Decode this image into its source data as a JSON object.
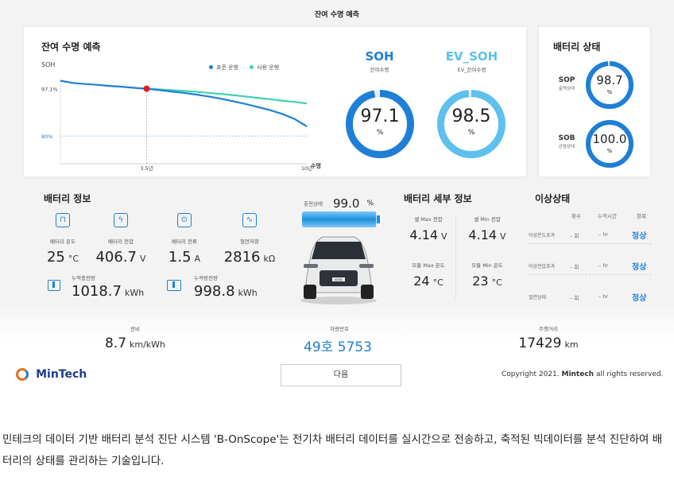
{
  "page_title": "잔여 수명 예측",
  "lifespan_card": {
    "title": "잔여 수명 예측",
    "y_label": "SOH",
    "legend": [
      "표준 운행",
      "사용 운행"
    ],
    "x_axis_title": "수명"
  },
  "chart_data": {
    "type": "line",
    "title": "잔여 수명 예측",
    "ylabel": "SOH",
    "xlabel": "수명",
    "x_ticks": [
      "3.5년",
      "10년"
    ],
    "y_ticks": [
      "97.1%",
      "80%"
    ],
    "x": [
      0,
      0.5,
      1,
      1.5,
      2,
      2.5,
      3,
      3.5,
      4,
      4.5,
      5,
      5.5,
      6,
      6.5,
      7,
      7.5,
      8,
      8.5,
      9,
      9.5,
      10
    ],
    "xlim": [
      0,
      10
    ],
    "ylim": [
      70,
      101
    ],
    "series": [
      {
        "name": "표준 운행",
        "color": "#1e7fd6",
        "values": [
          100,
          99.2,
          98.8,
          98.5,
          98.1,
          97.8,
          97.4,
          97.1,
          96.6,
          96.1,
          95.6,
          95.0,
          94.3,
          93.5,
          92.6,
          91.6,
          90.5,
          89.4,
          88.0,
          86.2,
          83.5
        ]
      },
      {
        "name": "사용 운행",
        "color": "#3ed1b3",
        "values": [
          null,
          null,
          null,
          null,
          null,
          null,
          null,
          97.1,
          96.9,
          96.6,
          96.3,
          96.0,
          95.6,
          95.2,
          94.8,
          94.3,
          93.8,
          93.3,
          92.8,
          92.3,
          91.8
        ]
      }
    ],
    "marker": {
      "x": 3.5,
      "y": 97.1,
      "color": "#e02020"
    },
    "reference_line": {
      "y": 80
    }
  },
  "soh": {
    "title": "SOH",
    "subtitle": "잔여수명",
    "value": "97.1",
    "percent": 97.1,
    "unit": "%",
    "color": "#1e7fd6"
  },
  "ev_soh": {
    "title": "EV_SOH",
    "subtitle": "EV_잔여수명",
    "value": "98.5",
    "percent": 98.5,
    "unit": "%",
    "color": "#5ec0ee"
  },
  "battery_state": {
    "title": "배터리 상태",
    "items": [
      {
        "key": "SOP",
        "desc": "출력상태",
        "value": "98.7",
        "percent": 98.7,
        "unit": "%"
      },
      {
        "key": "SOB",
        "desc": "균형상태",
        "value": "100.0",
        "percent": 100.0,
        "unit": "%"
      }
    ]
  },
  "battery_info": {
    "title": "배터리 정보",
    "metrics": [
      {
        "label": "배터리 온도",
        "value": "25",
        "unit": "°C",
        "icon": "thermometer-icon"
      },
      {
        "label": "배터리 전압",
        "value": "406.7",
        "unit": "V",
        "icon": "bolt-icon"
      },
      {
        "label": "배터리 전류",
        "value": "1.5",
        "unit": "A",
        "icon": "ammeter-icon"
      },
      {
        "label": "절연저항",
        "value": "2816",
        "unit": "kΩ",
        "icon": "resistor-icon"
      }
    ],
    "energy": [
      {
        "label": "누적충전량",
        "value": "1018.7",
        "unit": "kWh",
        "icon": "charge-icon"
      },
      {
        "label": "누적방전량",
        "value": "998.8",
        "unit": "kWh",
        "icon": "discharge-icon"
      }
    ]
  },
  "charge": {
    "label": "충전상태",
    "value": "99.0",
    "percent": 99.0,
    "unit": "%"
  },
  "car_badge": "KONA",
  "detail": {
    "title": "배터리 세부 정보",
    "cells": [
      {
        "label": "셀 Max 전압",
        "value": "4.14",
        "unit": "V"
      },
      {
        "label": "셀 Min 전압",
        "value": "4.14",
        "unit": "V"
      },
      {
        "label": "모듈 Max 온도",
        "value": "24",
        "unit": "°C"
      },
      {
        "label": "모듈 Min 온도",
        "value": "23",
        "unit": "°C"
      }
    ]
  },
  "abnormal": {
    "title": "이상상태",
    "headers": [
      "횟수",
      "누적시간",
      "항목"
    ],
    "rows": [
      {
        "name": "이상온도초과",
        "count": "– 회",
        "time": "– hr",
        "status": "정상"
      },
      {
        "name": "이상전압초과",
        "count": "– 회",
        "time": "– hr",
        "status": "정상"
      },
      {
        "name": "절연상태",
        "count": "– 회",
        "time": "– hr",
        "status": "정상"
      }
    ]
  },
  "footer_stats": [
    {
      "label": "전비",
      "value": "8.7",
      "unit": "km/kWh"
    },
    {
      "label": "차량번호",
      "value": "49호 5753",
      "unit": ""
    },
    {
      "label": "주행거리",
      "value": "17429",
      "unit": "km"
    }
  ],
  "logo_text": "MinTech",
  "next_button": "다음",
  "copyright_prefix": "Copyright 2021.",
  "copyright_brand": "Mintech",
  "copyright_suffix": "all rights reserved.",
  "caption": "민테크의 데이터 기반 배터리 분석 진단 시스템 'B-OnScope'는 전기차 배터리 데이터를 실시간으로 전송하고, 축적된 빅데이터를 분석 진단하여 배터리의 상태를 관리하는 기술입니다."
}
